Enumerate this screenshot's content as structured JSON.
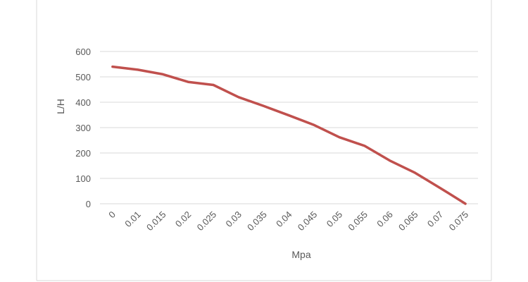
{
  "chart_data": {
    "type": "line",
    "title": "",
    "xlabel": "Mpa",
    "ylabel": "L/H",
    "x_categories": [
      "0",
      "0.01",
      "0.015",
      "0.02",
      "0.025",
      "0.03",
      "0.035",
      "0.04",
      "0.045",
      "0.05",
      "0.055",
      "0.06",
      "0.065",
      "0.07",
      "0.075"
    ],
    "ylim": [
      0,
      600
    ],
    "y_ticks": [
      "0",
      "100",
      "200",
      "300",
      "400",
      "500",
      "600"
    ],
    "grid": true,
    "legend": "none",
    "series": [
      {
        "color": "#c0504d",
        "values": [
          540,
          528,
          510,
          480,
          468,
          420,
          385,
          348,
          310,
          262,
          228,
          170,
          122,
          62,
          0
        ]
      }
    ]
  }
}
